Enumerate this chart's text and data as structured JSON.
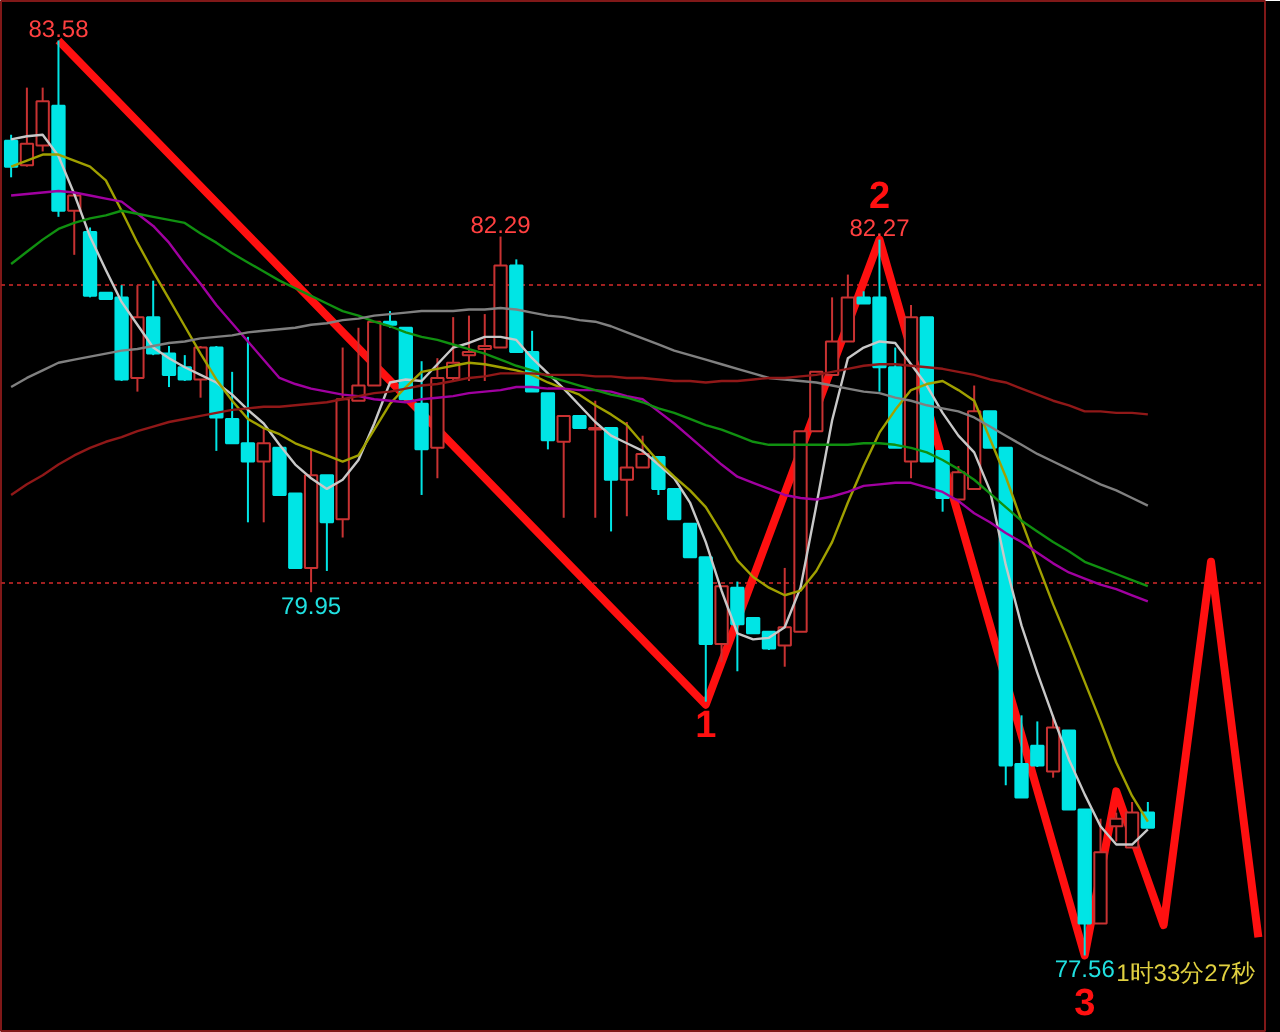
{
  "chart_data": {
    "type": "candlestick",
    "categories": [
      null,
      null,
      null,
      null,
      null,
      null,
      null,
      null,
      null,
      null,
      null,
      null,
      null,
      null,
      null,
      null,
      null,
      null,
      null,
      null,
      null,
      null,
      null,
      null,
      null,
      null,
      null,
      null,
      null,
      null,
      null,
      null,
      null,
      null,
      null,
      null,
      null,
      null,
      null,
      null,
      null,
      null,
      null,
      null,
      null,
      null,
      null,
      null,
      null,
      null,
      null,
      null,
      null,
      null,
      null,
      null,
      null,
      null,
      null,
      null,
      null,
      null,
      null,
      null,
      null,
      null,
      null,
      null,
      null,
      null,
      null,
      null,
      null,
      null,
      null,
      null,
      null,
      null,
      null,
      null
    ],
    "ohlc": [
      [
        82.92,
        82.96,
        82.68,
        82.75
      ],
      [
        82.76,
        83.27,
        82.75,
        82.9
      ],
      [
        82.89,
        83.27,
        82.85,
        83.18
      ],
      [
        83.15,
        83.58,
        82.42,
        82.46
      ],
      [
        82.46,
        82.56,
        82.17,
        82.56
      ],
      [
        82.32,
        82.35,
        81.89,
        81.9
      ],
      [
        81.92,
        81.92,
        81.88,
        81.88
      ],
      [
        81.89,
        81.97,
        81.34,
        81.35
      ],
      [
        81.36,
        81.97,
        81.27,
        81.76
      ],
      [
        81.76,
        82.0,
        81.51,
        81.52
      ],
      [
        81.52,
        81.57,
        81.3,
        81.38
      ],
      [
        81.43,
        81.51,
        81.34,
        81.35
      ],
      [
        81.35,
        81.57,
        81.23,
        81.56
      ],
      [
        81.56,
        81.57,
        80.88,
        81.1
      ],
      [
        81.09,
        81.4,
        80.93,
        80.93
      ],
      [
        80.93,
        81.63,
        80.41,
        80.81
      ],
      [
        80.81,
        81.03,
        80.41,
        80.93
      ],
      [
        80.9,
        80.9,
        80.59,
        80.59
      ],
      [
        80.6,
        80.6,
        80.11,
        80.11
      ],
      [
        80.11,
        80.89,
        79.95,
        80.72
      ],
      [
        80.72,
        80.72,
        80.09,
        80.41
      ],
      [
        80.43,
        81.56,
        80.31,
        81.22
      ],
      [
        81.21,
        81.69,
        81.21,
        81.31
      ],
      [
        81.31,
        81.73,
        81.31,
        81.73
      ],
      [
        81.73,
        81.8,
        81.69,
        81.71
      ],
      [
        81.69,
        81.69,
        81.22,
        81.22
      ],
      [
        81.19,
        81.47,
        80.59,
        80.89
      ],
      [
        80.9,
        81.49,
        80.7,
        81.36
      ],
      [
        81.36,
        81.76,
        81.34,
        81.46
      ],
      [
        81.51,
        81.77,
        81.34,
        81.53
      ],
      [
        81.55,
        81.78,
        81.34,
        81.57
      ],
      [
        81.56,
        82.29,
        81.56,
        82.1
      ],
      [
        82.1,
        82.14,
        81.53,
        81.53
      ],
      [
        81.53,
        81.67,
        81.27,
        81.27
      ],
      [
        81.26,
        81.26,
        80.89,
        80.95
      ],
      [
        80.94,
        81.11,
        80.44,
        81.11
      ],
      [
        81.11,
        81.11,
        81.03,
        81.03
      ],
      [
        81.02,
        81.21,
        80.44,
        81.03
      ],
      [
        81.03,
        81.03,
        80.35,
        80.69
      ],
      [
        80.69,
        81.07,
        80.45,
        80.77
      ],
      [
        80.77,
        80.98,
        80.77,
        80.86
      ],
      [
        80.84,
        80.84,
        80.59,
        80.63
      ],
      [
        80.63,
        80.63,
        80.43,
        80.43
      ],
      [
        80.4,
        80.4,
        80.18,
        80.18
      ],
      [
        80.18,
        80.18,
        79.23,
        79.61
      ],
      [
        79.61,
        79.99,
        79.49,
        79.99
      ],
      [
        79.98,
        80.02,
        79.43,
        79.74
      ],
      [
        79.78,
        79.78,
        79.68,
        79.68
      ],
      [
        79.69,
        79.69,
        79.57,
        79.58
      ],
      [
        79.6,
        80.11,
        79.46,
        79.72
      ],
      [
        79.69,
        81.01,
        79.69,
        81.01
      ],
      [
        81.01,
        81.4,
        81.01,
        81.4
      ],
      [
        81.38,
        81.89,
        81.38,
        81.6
      ],
      [
        81.6,
        82.04,
        81.6,
        81.89
      ],
      [
        81.89,
        81.93,
        81.85,
        81.85
      ],
      [
        81.89,
        82.27,
        81.27,
        81.43
      ],
      [
        81.43,
        81.56,
        80.9,
        80.9
      ],
      [
        80.81,
        81.84,
        80.7,
        81.76
      ],
      [
        81.76,
        81.76,
        80.81,
        80.81
      ],
      [
        80.88,
        80.88,
        80.48,
        80.57
      ],
      [
        80.56,
        80.78,
        80.56,
        80.74
      ],
      [
        80.63,
        81.31,
        80.63,
        81.14
      ],
      [
        81.14,
        81.14,
        80.9,
        80.9
      ],
      [
        80.9,
        80.9,
        78.68,
        78.81
      ],
      [
        78.82,
        79.14,
        78.6,
        78.6
      ],
      [
        78.94,
        79.1,
        78.8,
        78.81
      ],
      [
        78.77,
        79.14,
        78.73,
        79.06
      ],
      [
        79.04,
        79.04,
        78.52,
        78.52
      ],
      [
        78.52,
        78.52,
        77.56,
        77.77
      ],
      [
        77.77,
        78.46,
        77.77,
        78.24
      ],
      [
        78.41,
        78.5,
        78.31,
        78.46
      ],
      [
        78.27,
        78.57,
        78.27,
        78.5
      ],
      [
        78.5,
        78.57,
        78.4,
        78.4
      ],
      null,
      null,
      null,
      null,
      null,
      null,
      null
    ],
    "colors": [
      "#00e5e5",
      "#c83232",
      "#c83232",
      "#00e5e5",
      "#c83232",
      "#00e5e5",
      "#00e5e5",
      "#00e5e5",
      "#c83232",
      "#00e5e5",
      "#00e5e5",
      "#00e5e5",
      "#c83232",
      "#00e5e5",
      "#00e5e5",
      "#00e5e5",
      "#c83232",
      "#00e5e5",
      "#00e5e5",
      "#c83232",
      "#00e5e5",
      "#c83232",
      "#c83232",
      "#c83232",
      "#00e5e5",
      "#00e5e5",
      "#00e5e5",
      "#c83232",
      "#c83232",
      "#c83232",
      "#c83232",
      "#c83232",
      "#00e5e5",
      "#00e5e5",
      "#00e5e5",
      "#c83232",
      "#00e5e5",
      "#c83232",
      "#00e5e5",
      "#c83232",
      "#c83232",
      "#00e5e5",
      "#00e5e5",
      "#00e5e5",
      "#00e5e5",
      "#c83232",
      "#00e5e5",
      "#00e5e5",
      "#00e5e5",
      "#c83232",
      "#c83232",
      "#c83232",
      "#c83232",
      "#c83232",
      "#00e5e5",
      "#00e5e5",
      "#00e5e5",
      "#c83232",
      "#00e5e5",
      "#00e5e5",
      "#c83232",
      "#c83232",
      "#00e5e5",
      "#00e5e5",
      "#00e5e5",
      "#00e5e5",
      "#c83232",
      "#00e5e5",
      "#00e5e5",
      "#c83232",
      "#c83232",
      "#c83232",
      "#00e5e5",
      null,
      null,
      null,
      null,
      null,
      null,
      null
    ],
    "series": [
      {
        "type": "line",
        "color": "#c8c8c8",
        "values": [
          82.93,
          82.95,
          82.96,
          82.82,
          82.57,
          82.29,
          82.07,
          81.86,
          81.71,
          81.56,
          81.49,
          81.43,
          81.38,
          81.33,
          81.25,
          81.15,
          81.06,
          80.92,
          80.79,
          80.7,
          80.63,
          80.69,
          80.82,
          81.06,
          81.33,
          81.35,
          81.34,
          81.45,
          81.56,
          81.59,
          81.63,
          81.63,
          81.61,
          81.49,
          81.39,
          81.29,
          81.18,
          81.07,
          80.98,
          80.93,
          80.88,
          80.79,
          80.7,
          80.54,
          80.28,
          79.96,
          79.68,
          79.64,
          79.65,
          79.72,
          79.98,
          80.52,
          81.08,
          81.49,
          81.56,
          81.6,
          81.59,
          81.45,
          81.31,
          81.13,
          80.98,
          80.87,
          80.62,
          80.13,
          79.73,
          79.42,
          79.13,
          78.85,
          78.62,
          78.41,
          78.29,
          78.29,
          78.39,
          null,
          null,
          null,
          null,
          null,
          null,
          null
        ]
      },
      {
        "type": "line",
        "color": "#a0a000",
        "values": [
          82.75,
          82.79,
          82.83,
          82.83,
          82.79,
          82.75,
          82.66,
          82.46,
          82.25,
          82.06,
          81.88,
          81.7,
          81.52,
          81.35,
          81.21,
          81.09,
          81.03,
          80.99,
          80.93,
          80.89,
          80.85,
          80.81,
          80.85,
          81.02,
          81.19,
          81.3,
          81.4,
          81.42,
          81.44,
          81.46,
          81.45,
          81.43,
          81.41,
          81.38,
          81.33,
          81.29,
          81.25,
          81.18,
          81.12,
          81.05,
          80.93,
          80.81,
          80.71,
          80.62,
          80.51,
          80.34,
          80.16,
          80.05,
          79.98,
          79.93,
          79.96,
          80.09,
          80.28,
          80.54,
          80.78,
          81.0,
          81.15,
          81.28,
          81.32,
          81.34,
          81.28,
          81.21,
          80.96,
          80.71,
          80.42,
          80.14,
          79.87,
          79.62,
          79.36,
          79.1,
          78.83,
          78.61,
          78.44,
          null,
          null,
          null,
          null,
          null,
          null,
          null
        ]
      },
      {
        "type": "line",
        "color": "#a000a0",
        "values": [
          82.56,
          82.57,
          82.58,
          82.59,
          82.58,
          82.56,
          82.54,
          82.52,
          82.44,
          82.36,
          82.25,
          82.11,
          81.98,
          81.84,
          81.72,
          81.6,
          81.48,
          81.36,
          81.32,
          81.29,
          81.27,
          81.25,
          81.24,
          81.22,
          81.21,
          81.2,
          81.22,
          81.23,
          81.24,
          81.26,
          81.27,
          81.28,
          81.3,
          81.3,
          81.29,
          81.29,
          81.28,
          81.28,
          81.27,
          81.24,
          81.22,
          81.14,
          81.06,
          80.97,
          80.88,
          80.79,
          80.71,
          80.67,
          80.63,
          80.59,
          80.57,
          80.56,
          80.58,
          80.61,
          80.65,
          80.66,
          80.67,
          80.67,
          80.64,
          80.61,
          80.55,
          80.47,
          80.41,
          80.34,
          80.28,
          80.21,
          80.14,
          80.08,
          80.04,
          80.0,
          79.97,
          79.93,
          79.89,
          null,
          null,
          null,
          null,
          null,
          null,
          null
        ]
      },
      {
        "type": "line",
        "color": "#109010",
        "values": [
          82.11,
          82.19,
          82.27,
          82.34,
          82.38,
          82.41,
          82.43,
          82.46,
          82.44,
          82.42,
          82.4,
          82.38,
          82.31,
          82.25,
          82.18,
          82.12,
          82.06,
          82.0,
          81.95,
          81.9,
          81.85,
          81.8,
          81.77,
          81.73,
          81.7,
          81.66,
          81.63,
          81.61,
          81.58,
          81.55,
          81.52,
          81.48,
          81.44,
          81.41,
          81.37,
          81.34,
          81.31,
          81.28,
          81.25,
          81.23,
          81.2,
          81.16,
          81.13,
          81.09,
          81.05,
          81.02,
          80.98,
          80.94,
          80.92,
          80.92,
          80.92,
          80.92,
          80.92,
          80.92,
          80.93,
          80.93,
          80.92,
          80.9,
          80.87,
          80.82,
          80.76,
          80.69,
          80.6,
          80.51,
          80.42,
          80.35,
          80.28,
          80.22,
          80.15,
          80.11,
          80.07,
          80.03,
          79.99,
          null,
          null,
          null,
          null,
          null,
          null,
          null
        ]
      },
      {
        "type": "line",
        "color": "#808080",
        "values": [
          81.3,
          81.36,
          81.41,
          81.46,
          81.48,
          81.5,
          81.52,
          81.54,
          81.55,
          81.57,
          81.59,
          81.6,
          81.62,
          81.63,
          81.64,
          81.66,
          81.67,
          81.68,
          81.69,
          81.71,
          81.72,
          81.74,
          81.75,
          81.77,
          81.78,
          81.79,
          81.8,
          81.8,
          81.8,
          81.81,
          81.81,
          81.82,
          81.81,
          81.79,
          81.77,
          81.76,
          81.74,
          81.73,
          81.7,
          81.66,
          81.62,
          81.58,
          81.54,
          81.51,
          81.48,
          81.45,
          81.42,
          81.39,
          81.36,
          81.35,
          81.34,
          81.33,
          81.31,
          81.29,
          81.27,
          81.26,
          81.23,
          81.21,
          81.18,
          81.16,
          81.14,
          81.1,
          81.04,
          80.98,
          80.92,
          80.86,
          80.81,
          80.76,
          80.71,
          80.66,
          80.62,
          80.57,
          80.52,
          null,
          null,
          null,
          null,
          null,
          null,
          null
        ]
      },
      {
        "type": "line",
        "color": "#901818",
        "values": [
          80.59,
          80.66,
          80.72,
          80.79,
          80.85,
          80.9,
          80.94,
          80.97,
          81.01,
          81.04,
          81.07,
          81.09,
          81.11,
          81.13,
          81.15,
          81.16,
          81.17,
          81.17,
          81.18,
          81.19,
          81.2,
          81.22,
          81.24,
          81.26,
          81.27,
          81.29,
          81.31,
          81.32,
          81.34,
          81.36,
          81.37,
          81.39,
          81.39,
          81.39,
          81.38,
          81.38,
          81.38,
          81.37,
          81.37,
          81.36,
          81.36,
          81.35,
          81.34,
          81.34,
          81.33,
          81.34,
          81.34,
          81.35,
          81.36,
          81.36,
          81.37,
          81.38,
          81.4,
          81.42,
          81.44,
          81.45,
          81.45,
          81.44,
          81.43,
          81.42,
          81.4,
          81.38,
          81.35,
          81.33,
          81.29,
          81.25,
          81.21,
          81.18,
          81.14,
          81.14,
          81.13,
          81.13,
          81.12,
          null,
          null,
          null,
          null,
          null,
          null,
          null
        ]
      },
      {
        "type": "line",
        "color": "#ff1010",
        "values": [
          null,
          null,
          null,
          83.58,
          null,
          null,
          null,
          null,
          null,
          null,
          null,
          null,
          null,
          null,
          null,
          null,
          null,
          null,
          null,
          null,
          null,
          null,
          null,
          null,
          null,
          null,
          null,
          null,
          null,
          null,
          null,
          null,
          null,
          null,
          null,
          null,
          null,
          null,
          null,
          null,
          null,
          null,
          null,
          null,
          79.21,
          null,
          null,
          null,
          null,
          null,
          null,
          null,
          null,
          null,
          null,
          82.27,
          null,
          null,
          null,
          null,
          null,
          null,
          null,
          null,
          null,
          null,
          null,
          null,
          77.56,
          null,
          78.64,
          null,
          null,
          77.76,
          null,
          null,
          80.15,
          null,
          null,
          77.68
        ]
      }
    ],
    "ylim": [
      77.05,
      83.84
    ],
    "yticks": [
      {
        "value": 81.97,
        "label": null
      },
      {
        "value": 80.01,
        "label": null
      }
    ],
    "grid": "y",
    "tick_labels": false,
    "annotations": [
      {
        "text": "83.58",
        "y": 83.58
      },
      {
        "text": "82.29",
        "y": 82.29
      },
      {
        "text": "79.95",
        "y": 79.95
      },
      {
        "text": "82.27",
        "y": 82.27
      },
      {
        "text": "2",
        "y": 82.27
      },
      {
        "text": "1",
        "y": 79.21
      },
      {
        "text": "77.56",
        "y": 77.56
      },
      {
        "text": "3",
        "y": 77.56
      },
      "1时33分27秒"
    ]
  }
}
